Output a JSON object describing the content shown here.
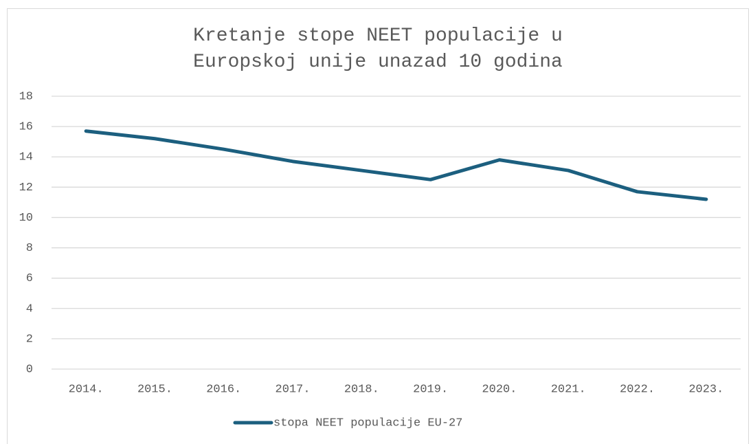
{
  "chart_data": {
    "type": "line",
    "title": "Kretanje stope NEET populacije u Europskoj unije unazad 10 godina",
    "categories": [
      "2014.",
      "2015.",
      "2016.",
      "2017.",
      "2018.",
      "2019.",
      "2020.",
      "2021.",
      "2022.",
      "2023."
    ],
    "series": [
      {
        "name": "stopa NEET populacije EU-27",
        "color": "#1c5f7f",
        "values": [
          15.7,
          15.2,
          14.5,
          13.7,
          13.1,
          12.5,
          13.8,
          13.1,
          11.7,
          11.2
        ]
      }
    ],
    "ylim": [
      0,
      18
    ],
    "yticks": [
      0,
      2,
      4,
      6,
      8,
      10,
      12,
      14,
      16,
      18
    ],
    "grid": true,
    "legend": "bottom"
  }
}
